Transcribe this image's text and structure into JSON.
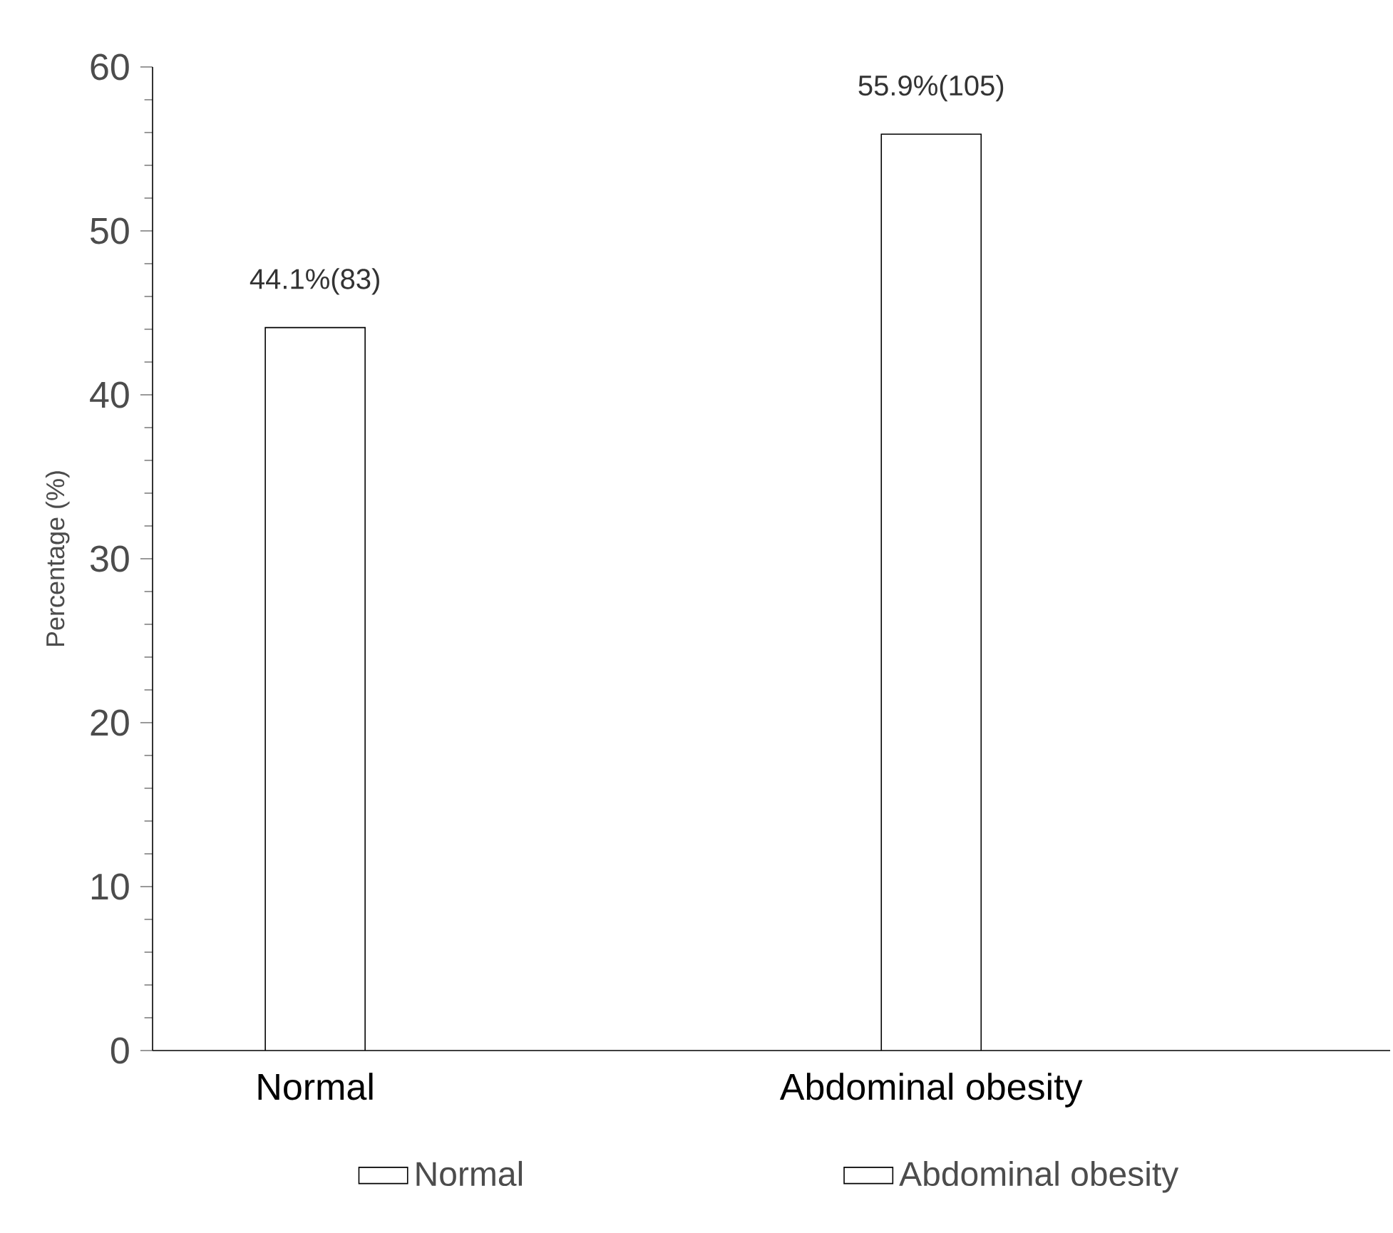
{
  "chart_data": {
    "type": "bar",
    "ylabel": "Percentage (%)",
    "categories": [
      "Normal",
      "Abdominal obesity"
    ],
    "series": [
      {
        "name": "Normal",
        "color": "#000000",
        "values": [
          44.1,
          null
        ],
        "value_labels": [
          "44.1%(83)",
          null
        ]
      },
      {
        "name": "Abdominal obesity",
        "color": "#000000",
        "values": [
          null,
          55.9
        ],
        "value_labels": [
          null,
          "55.9%(105)"
        ]
      }
    ],
    "ylim": [
      0,
      60
    ],
    "yticks": [
      0,
      10,
      20,
      30,
      40,
      50,
      60
    ],
    "legend": "bottom"
  }
}
